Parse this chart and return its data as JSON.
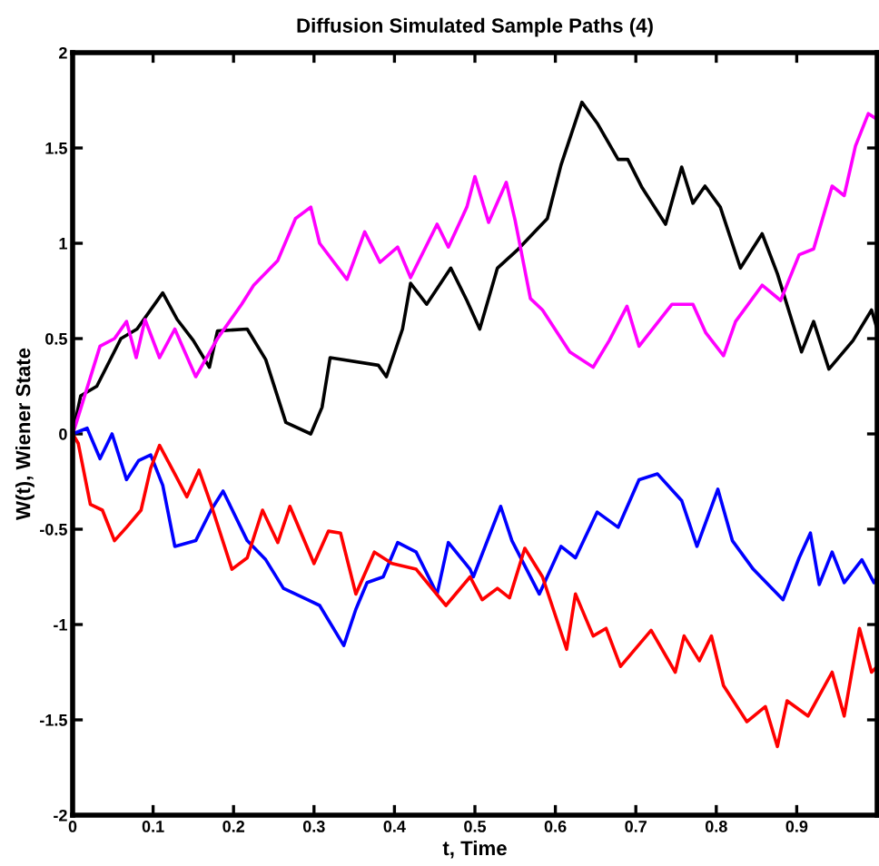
{
  "chart_data": {
    "type": "line",
    "title": "Diffusion Simulated Sample Paths (4)",
    "xlabel": "t, Time",
    "ylabel": "W(t), Wiener State",
    "xlim": [
      0,
      1
    ],
    "xticks": [
      0,
      0.1,
      0.2,
      0.3,
      0.4,
      0.5,
      0.6,
      0.7,
      0.8,
      0.9
    ],
    "ylim": [
      -2,
      2
    ],
    "yticks": [
      -2,
      -1.5,
      -1,
      -0.5,
      0,
      0.5,
      1,
      1.5,
      2
    ],
    "grid": false,
    "marker": "none",
    "line_style": "solid",
    "series": [
      {
        "color": "#000000",
        "x": [
          0,
          0.01,
          0.03,
          0.06,
          0.08,
          0.112,
          0.13,
          0.15,
          0.17,
          0.18,
          0.217,
          0.24,
          0.265,
          0.296,
          0.31,
          0.32,
          0.38,
          0.39,
          0.41,
          0.42,
          0.44,
          0.47,
          0.49,
          0.506,
          0.528,
          0.554,
          0.59,
          0.607,
          0.633,
          0.652,
          0.678,
          0.69,
          0.708,
          0.737,
          0.757,
          0.771,
          0.786,
          0.805,
          0.83,
          0.857,
          0.876,
          0.906,
          0.921,
          0.94,
          0.97,
          0.993,
          1
        ],
        "values": [
          0,
          0.2,
          0.25,
          0.5,
          0.55,
          0.74,
          0.6,
          0.49,
          0.35,
          0.54,
          0.55,
          0.39,
          0.06,
          0.0,
          0.14,
          0.4,
          0.36,
          0.3,
          0.55,
          0.79,
          0.68,
          0.87,
          0.7,
          0.55,
          0.87,
          0.97,
          1.13,
          1.41,
          1.74,
          1.63,
          1.44,
          1.44,
          1.29,
          1.1,
          1.4,
          1.21,
          1.3,
          1.19,
          0.87,
          1.05,
          0.84,
          0.43,
          0.59,
          0.34,
          0.49,
          0.65,
          0.55
        ]
      },
      {
        "color": "#ff00ff",
        "x": [
          0,
          0.004,
          0.034,
          0.052,
          0.067,
          0.079,
          0.09,
          0.108,
          0.127,
          0.153,
          0.18,
          0.21,
          0.225,
          0.255,
          0.277,
          0.296,
          0.307,
          0.341,
          0.363,
          0.382,
          0.404,
          0.42,
          0.453,
          0.467,
          0.49,
          0.5,
          0.517,
          0.539,
          0.55,
          0.569,
          0.584,
          0.618,
          0.647,
          0.667,
          0.689,
          0.704,
          0.745,
          0.771,
          0.787,
          0.809,
          0.824,
          0.857,
          0.88,
          0.903,
          0.921,
          0.944,
          0.959,
          0.973,
          0.989,
          1
        ],
        "values": [
          0,
          0.05,
          0.46,
          0.5,
          0.59,
          0.4,
          0.6,
          0.4,
          0.55,
          0.3,
          0.5,
          0.68,
          0.78,
          0.91,
          1.13,
          1.19,
          1.0,
          0.81,
          1.06,
          0.9,
          0.98,
          0.82,
          1.1,
          0.98,
          1.19,
          1.35,
          1.11,
          1.32,
          1.12,
          0.71,
          0.65,
          0.43,
          0.35,
          0.49,
          0.67,
          0.46,
          0.68,
          0.68,
          0.53,
          0.41,
          0.59,
          0.78,
          0.7,
          0.94,
          0.97,
          1.3,
          1.25,
          1.51,
          1.68,
          1.65
        ]
      },
      {
        "color": "#0000ff",
        "x": [
          0,
          0.018,
          0.034,
          0.049,
          0.067,
          0.082,
          0.097,
          0.112,
          0.127,
          0.153,
          0.172,
          0.187,
          0.217,
          0.24,
          0.262,
          0.292,
          0.307,
          0.337,
          0.352,
          0.366,
          0.386,
          0.404,
          0.427,
          0.453,
          0.467,
          0.494,
          0.498,
          0.532,
          0.546,
          0.58,
          0.607,
          0.625,
          0.652,
          0.678,
          0.704,
          0.727,
          0.757,
          0.776,
          0.802,
          0.82,
          0.846,
          0.869,
          0.883,
          0.903,
          0.917,
          0.928,
          0.944,
          0.959,
          0.981,
          0.996,
          1
        ],
        "values": [
          0,
          0.03,
          -0.13,
          0,
          -0.24,
          -0.14,
          -0.11,
          -0.27,
          -0.59,
          -0.56,
          -0.4,
          -0.3,
          -0.56,
          -0.66,
          -0.81,
          -0.87,
          -0.9,
          -1.11,
          -0.92,
          -0.78,
          -0.75,
          -0.57,
          -0.62,
          -0.84,
          -0.57,
          -0.71,
          -0.75,
          -0.38,
          -0.56,
          -0.84,
          -0.59,
          -0.65,
          -0.41,
          -0.49,
          -0.24,
          -0.21,
          -0.35,
          -0.59,
          -0.29,
          -0.56,
          -0.71,
          -0.81,
          -0.87,
          -0.65,
          -0.52,
          -0.79,
          -0.62,
          -0.78,
          -0.66,
          -0.78,
          -0.75
        ]
      },
      {
        "color": "#ff0000",
        "x": [
          0,
          0.007,
          0.022,
          0.037,
          0.052,
          0.067,
          0.085,
          0.097,
          0.108,
          0.127,
          0.142,
          0.157,
          0.172,
          0.198,
          0.217,
          0.236,
          0.255,
          0.27,
          0.3,
          0.318,
          0.333,
          0.352,
          0.375,
          0.397,
          0.427,
          0.464,
          0.494,
          0.509,
          0.528,
          0.543,
          0.562,
          0.584,
          0.614,
          0.625,
          0.647,
          0.663,
          0.681,
          0.697,
          0.719,
          0.749,
          0.76,
          0.779,
          0.794,
          0.809,
          0.838,
          0.861,
          0.876,
          0.888,
          0.914,
          0.944,
          0.959,
          0.978,
          0.993,
          1
        ],
        "values": [
          0,
          -0.05,
          -0.37,
          -0.4,
          -0.56,
          -0.49,
          -0.4,
          -0.18,
          -0.06,
          -0.21,
          -0.33,
          -0.19,
          -0.37,
          -0.71,
          -0.65,
          -0.4,
          -0.57,
          -0.38,
          -0.68,
          -0.51,
          -0.52,
          -0.84,
          -0.62,
          -0.68,
          -0.71,
          -0.9,
          -0.75,
          -0.87,
          -0.81,
          -0.86,
          -0.6,
          -0.75,
          -1.13,
          -0.84,
          -1.06,
          -1.02,
          -1.22,
          -1.14,
          -1.03,
          -1.25,
          -1.06,
          -1.19,
          -1.06,
          -1.32,
          -1.51,
          -1.43,
          -1.64,
          -1.4,
          -1.48,
          -1.25,
          -1.48,
          -1.02,
          -1.25,
          -1.22
        ]
      }
    ]
  }
}
